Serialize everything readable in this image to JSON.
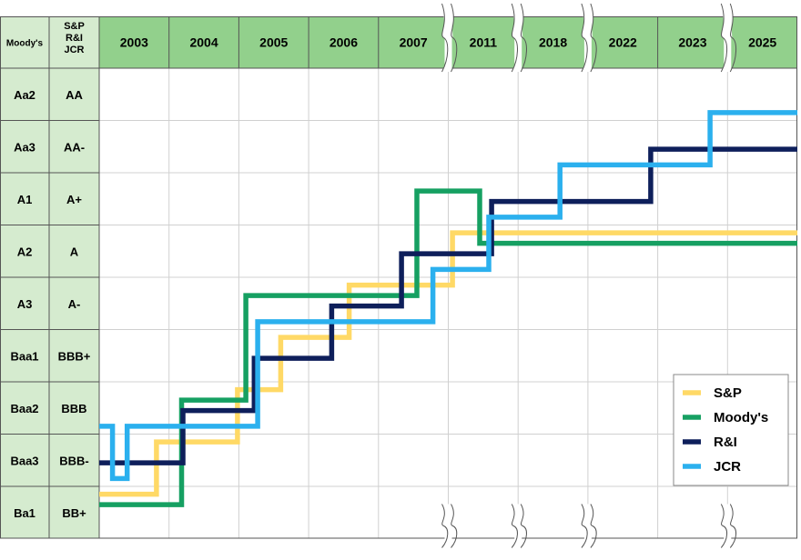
{
  "chart_data": {
    "type": "line",
    "subtype": "step",
    "corner_header": {
      "moodys": "Moody's",
      "sp": "S&P",
      "ri": "R&I",
      "jcr": "JCR"
    },
    "x_categories": [
      "2003",
      "2004",
      "2005",
      "2006",
      "2007",
      "2011",
      "2018",
      "2022",
      "2023",
      "2025"
    ],
    "axis_breaks_after": [
      "2007",
      "2011",
      "2018",
      "2023"
    ],
    "rating_rows": [
      {
        "moodys": "Aa2",
        "sp_ri_jcr": "AA"
      },
      {
        "moodys": "Aa3",
        "sp_ri_jcr": "AA-"
      },
      {
        "moodys": "A1",
        "sp_ri_jcr": "A+"
      },
      {
        "moodys": "A2",
        "sp_ri_jcr": "A"
      },
      {
        "moodys": "A3",
        "sp_ri_jcr": "A-"
      },
      {
        "moodys": "Baa1",
        "sp_ri_jcr": "BBB+"
      },
      {
        "moodys": "Baa2",
        "sp_ri_jcr": "BBB"
      },
      {
        "moodys": "Baa3",
        "sp_ri_jcr": "BBB-"
      },
      {
        "moodys": "Ba1",
        "sp_ri_jcr": "BB+"
      }
    ],
    "series": [
      {
        "name": "S&P",
        "color": "#FFD966",
        "steps": [
          {
            "x": 0.0,
            "level": 8.15
          },
          {
            "x": 0.82,
            "level": 7.15
          },
          {
            "x": 1.98,
            "level": 6.15
          },
          {
            "x": 2.6,
            "level": 5.15
          },
          {
            "x": 3.58,
            "level": 4.15
          },
          {
            "x": 5.06,
            "level": 3.15
          },
          {
            "x": 10.0,
            "level": 3.15
          }
        ]
      },
      {
        "name": "Moody's",
        "color": "#16A062",
        "steps": [
          {
            "x": 0.0,
            "level": 8.35
          },
          {
            "x": 1.18,
            "level": 6.35
          },
          {
            "x": 2.1,
            "level": 4.35
          },
          {
            "x": 4.55,
            "level": 2.35
          },
          {
            "x": 5.45,
            "level": 3.35
          },
          {
            "x": 10.0,
            "level": 3.35
          }
        ]
      },
      {
        "name": "R&I",
        "color": "#0E1F5B",
        "steps": [
          {
            "x": 0.0,
            "level": 7.55
          },
          {
            "x": 1.2,
            "level": 6.55
          },
          {
            "x": 2.22,
            "level": 5.55
          },
          {
            "x": 3.33,
            "level": 4.55
          },
          {
            "x": 4.33,
            "level": 3.55
          },
          {
            "x": 5.62,
            "level": 2.55
          },
          {
            "x": 7.9,
            "level": 1.55
          },
          {
            "x": 10.0,
            "level": 1.55
          }
        ]
      },
      {
        "name": "JCR",
        "color": "#2BB0EE",
        "steps": [
          {
            "x": 0.0,
            "level": 6.85
          },
          {
            "x": 0.19,
            "level": 7.85
          },
          {
            "x": 0.4,
            "level": 6.85
          },
          {
            "x": 2.27,
            "level": 4.85
          },
          {
            "x": 4.78,
            "level": 3.85
          },
          {
            "x": 5.58,
            "level": 2.85
          },
          {
            "x": 6.6,
            "level": 1.85
          },
          {
            "x": 8.75,
            "level": 0.85
          },
          {
            "x": 10.0,
            "level": 0.85
          }
        ]
      }
    ],
    "legend": {
      "position": "bottom-right",
      "entries": [
        "S&P",
        "Moody's",
        "R&I",
        "JCR"
      ]
    },
    "grid": true,
    "header_color": "#92D08C",
    "rating_column_color": "#D5EBCF",
    "gridline_color": "#D0D0D0"
  }
}
